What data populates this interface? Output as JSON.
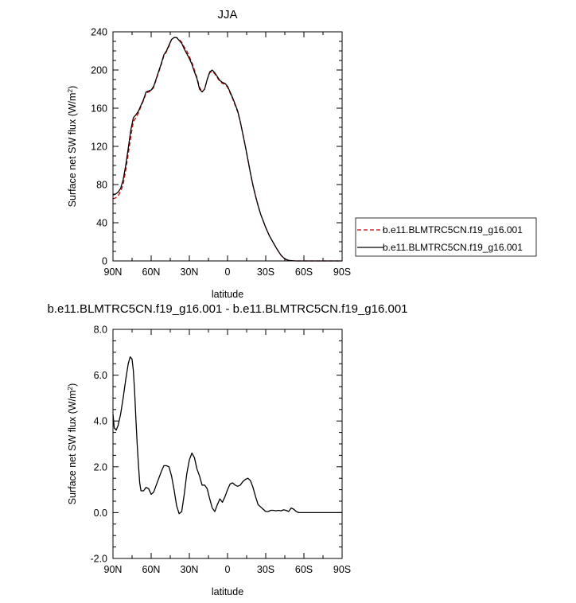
{
  "chart_data": [
    {
      "type": "line",
      "title": "JJA",
      "xlabel": "latitude",
      "ylabel": "Surface net SW flux (W/m",
      "ylabel_sup": "2",
      "ylabel_close": ")",
      "xlim": [
        90,
        -90
      ],
      "ylim": [
        0,
        240
      ],
      "xticks": [
        90,
        60,
        30,
        0,
        -30,
        -60,
        -90
      ],
      "xtick_labels": [
        "90N",
        "60N",
        "30N",
        "0",
        "30S",
        "60S",
        "90S"
      ],
      "yticks": [
        0,
        40,
        80,
        120,
        160,
        200,
        240
      ],
      "ytick_labels": [
        "0",
        "40",
        "80",
        "120",
        "160",
        "200",
        "240"
      ],
      "legend_position": "right",
      "series": [
        {
          "name": "b.e11.BLMTRC5CN.f19_g16.001",
          "color": "#cc0000",
          "dash": "dashed",
          "x": [
            90,
            88,
            86,
            84,
            82,
            80,
            78,
            76,
            74,
            72,
            70,
            68,
            66,
            64,
            62,
            60,
            58,
            56,
            54,
            52,
            50,
            48,
            46,
            44,
            42,
            40,
            38,
            36,
            34,
            32,
            30,
            28,
            26,
            24,
            22,
            20,
            18,
            16,
            14,
            12,
            10,
            8,
            6,
            4,
            2,
            0,
            -2,
            -4,
            -6,
            -8,
            -10,
            -12,
            -14,
            -16,
            -18,
            -20,
            -22,
            -24,
            -26,
            -28,
            -30,
            -33,
            -36,
            -39,
            -42,
            -45,
            -48,
            -51,
            -54,
            -57,
            -60,
            -63,
            -65,
            -67,
            -70,
            -75,
            -80,
            -85,
            -90
          ],
          "y": [
            65,
            66,
            68,
            73,
            80,
            95,
            112,
            130,
            146,
            150,
            155,
            162,
            168,
            176,
            177,
            178,
            182,
            190,
            198,
            206,
            215,
            219,
            225,
            232,
            234,
            234,
            232,
            229,
            224,
            220,
            214,
            208,
            200,
            192,
            182,
            177,
            180,
            190,
            197,
            199,
            196,
            192,
            188,
            186,
            185,
            182,
            176,
            170,
            163,
            156,
            146,
            133,
            120,
            106,
            92,
            79,
            68,
            58,
            49,
            42,
            35,
            26,
            19,
            12,
            6,
            2,
            0.6,
            0.2,
            0,
            0,
            0,
            0,
            0,
            0,
            0,
            0,
            0,
            0,
            0
          ]
        },
        {
          "name": "b.e11.BLMTRC5CN.f19_g16.001",
          "color": "#000000",
          "dash": "solid",
          "x": [
            90,
            88,
            86,
            84,
            82,
            80,
            78,
            76,
            74,
            72,
            70,
            68,
            66,
            64,
            62,
            60,
            58,
            56,
            54,
            52,
            50,
            48,
            46,
            44,
            42,
            40,
            38,
            36,
            34,
            32,
            30,
            28,
            26,
            24,
            22,
            20,
            18,
            16,
            14,
            12,
            10,
            8,
            6,
            4,
            2,
            0,
            -2,
            -4,
            -6,
            -8,
            -10,
            -12,
            -14,
            -16,
            -18,
            -20,
            -22,
            -24,
            -26,
            -28,
            -30,
            -33,
            -36,
            -39,
            -42,
            -45,
            -48,
            -51,
            -54,
            -57,
            -60,
            -63,
            -65,
            -67,
            -70,
            -75,
            -80,
            -85,
            -90
          ],
          "y": [
            69,
            70,
            72,
            76,
            85,
            100,
            118,
            137,
            150,
            153,
            157,
            163,
            169,
            177,
            178,
            179,
            183,
            191,
            199,
            207,
            216,
            220,
            226,
            232,
            234,
            234,
            231,
            228,
            222,
            217,
            212,
            206,
            198,
            191,
            180,
            177,
            180,
            190,
            198,
            200,
            197,
            193,
            189,
            187,
            186,
            183,
            177,
            171,
            164,
            157,
            146,
            133,
            120,
            106,
            92,
            79,
            68,
            58,
            49,
            42,
            35,
            26,
            19,
            12,
            6,
            2,
            0.6,
            0.2,
            0,
            0,
            0,
            0,
            0,
            0,
            0,
            0,
            0,
            0,
            0
          ]
        }
      ]
    },
    {
      "type": "line",
      "title": "b.e11.BLMTRC5CN.f19_g16.001 - b.e11.BLMTRC5CN.f19_g16.001",
      "xlabel": "latitude",
      "ylabel": "Surface net SW flux (W/m",
      "ylabel_sup": "2",
      "ylabel_close": ")",
      "xlim": [
        90,
        -90
      ],
      "ylim": [
        -2,
        8
      ],
      "xticks": [
        90,
        60,
        30,
        0,
        -30,
        -60,
        -90
      ],
      "xtick_labels": [
        "90N",
        "60N",
        "30N",
        "0",
        "30S",
        "60S",
        "90S"
      ],
      "yticks": [
        -2,
        0,
        2,
        4,
        6,
        8
      ],
      "ytick_labels": [
        "-2.0",
        "0.0",
        "2.0",
        "4.0",
        "6.0",
        "8.0"
      ],
      "series": [
        {
          "color": "#000000",
          "dash": "solid",
          "x": [
            90,
            89,
            87.5,
            86,
            84,
            82,
            80,
            78,
            76.5,
            75,
            74,
            73,
            72,
            71,
            70,
            69,
            68,
            66,
            64,
            62,
            60,
            58,
            56,
            54,
            52,
            50,
            48,
            46,
            44,
            42,
            40,
            38,
            36,
            34,
            32,
            30,
            28,
            26,
            24,
            22,
            20,
            18,
            16,
            14,
            12,
            10,
            8,
            6,
            4,
            2,
            0,
            -2,
            -4,
            -6,
            -8,
            -10,
            -12,
            -14,
            -16,
            -18,
            -20,
            -22,
            -24,
            -26,
            -28,
            -30,
            -32,
            -34,
            -36,
            -38,
            -40,
            -42,
            -44,
            -46,
            -48,
            -50,
            -52,
            -54,
            -56,
            -58,
            -60,
            -62,
            -64,
            -66,
            -68,
            -70,
            -75,
            -80,
            -85,
            -90
          ],
          "y": [
            4.3,
            3.7,
            3.6,
            3.8,
            4.3,
            5.0,
            5.8,
            6.5,
            6.8,
            6.7,
            6.2,
            5.3,
            4.1,
            3.0,
            2.1,
            1.3,
            0.95,
            0.95,
            1.1,
            1.05,
            0.8,
            0.9,
            1.2,
            1.5,
            1.8,
            2.05,
            2.05,
            2.0,
            1.6,
            1.0,
            0.3,
            -0.05,
            0.05,
            0.8,
            1.7,
            2.3,
            2.6,
            2.4,
            1.9,
            1.6,
            1.2,
            1.2,
            1.05,
            0.6,
            0.2,
            0.05,
            0.35,
            0.6,
            0.45,
            0.7,
            1.0,
            1.25,
            1.3,
            1.2,
            1.15,
            1.2,
            1.35,
            1.45,
            1.5,
            1.4,
            1.1,
            0.7,
            0.35,
            0.25,
            0.15,
            0.05,
            0.05,
            0.1,
            0.1,
            0.08,
            0.1,
            0.08,
            0.12,
            0.1,
            0.05,
            0.2,
            0.15,
            0.05,
            0.0,
            0.0,
            0.0,
            0.0,
            0.0,
            0.0,
            0.0,
            0.0,
            0.0,
            0.0,
            0.0,
            0.0
          ]
        }
      ]
    }
  ]
}
